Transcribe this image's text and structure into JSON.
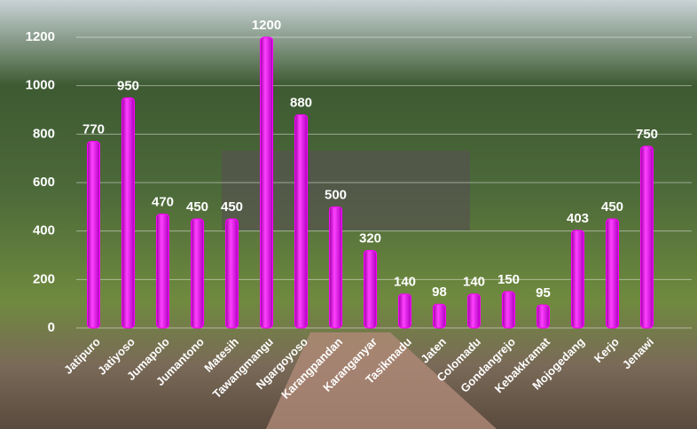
{
  "chart_data": {
    "type": "bar",
    "categories": [
      "Jatipuro",
      "Jatiyoso",
      "Jumapolo",
      "Jumantono",
      "Matesih",
      "Tawangmangu",
      "Ngargoyoso",
      "Karangpandan",
      "Karanganyar",
      "Tasikmadu",
      "Jaten",
      "Colomadu",
      "Gondangrejo",
      "Kebakkramat",
      "Mojogedang",
      "Kerjo",
      "Jenawi"
    ],
    "values": [
      770,
      950,
      470,
      450,
      450,
      1200,
      880,
      500,
      320,
      140,
      98,
      140,
      150,
      95,
      403,
      450,
      750
    ],
    "color": "#ff00ff",
    "ylim": [
      0,
      1200
    ],
    "yticks": [
      0,
      200,
      400,
      600,
      800,
      1000,
      1200
    ],
    "grid": true
  }
}
